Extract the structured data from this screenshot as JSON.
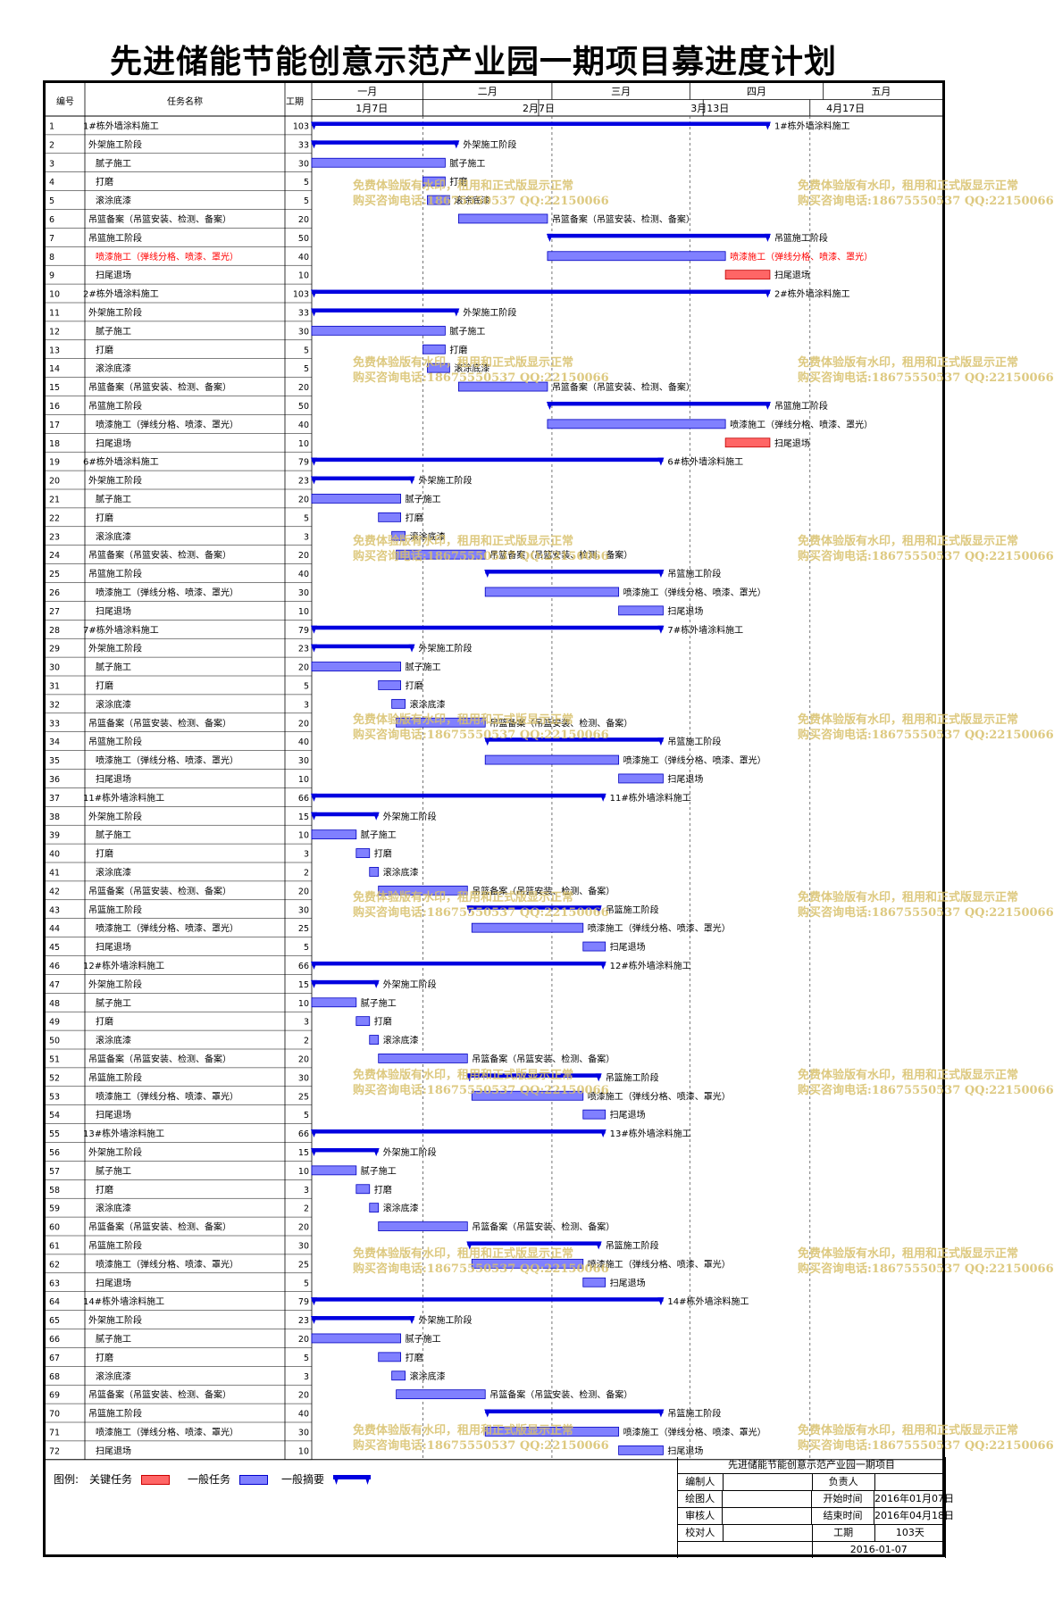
{
  "title": "先进储能节能创意示范产业园一期项目募进度计划",
  "header": {
    "col_no": "编号",
    "col_name": "任务名称",
    "col_dur": "工期"
  },
  "months": [
    "一月",
    "二月",
    "三月",
    "四月",
    "五月"
  ],
  "weeks": [
    "1月7日",
    "2月7日",
    "3月13日",
    "4月17日"
  ],
  "watermark": {
    "line1": "免费体验版有水印，租用和正式版显示正常",
    "line2": "购买咨询电话:18675550537 QQ:22150066"
  },
  "colors": {
    "summary": "#0000e0",
    "task": "#8080ff",
    "critical": "#ff6666",
    "critical_text": "#ff0000"
  },
  "chart_data": {
    "type": "gantt",
    "x_unit": "day index from project start (2016-01-07)",
    "tasks": [
      {
        "id": 1,
        "name": "1#栋外墙涂料施工",
        "dur": 103,
        "start": 0,
        "type": "summary",
        "indent": 0
      },
      {
        "id": 2,
        "name": "外架施工阶段",
        "dur": 33,
        "start": 0,
        "type": "summary",
        "indent": 1
      },
      {
        "id": 3,
        "name": "腻子施工",
        "dur": 30,
        "start": 0,
        "type": "task",
        "indent": 2
      },
      {
        "id": 4,
        "name": "打磨",
        "dur": 5,
        "start": 25,
        "type": "task",
        "indent": 2
      },
      {
        "id": 5,
        "name": "滚涂底漆",
        "dur": 5,
        "start": 26,
        "type": "task",
        "indent": 2
      },
      {
        "id": 6,
        "name": "吊篮备案（吊篮安装、检测、备案）",
        "dur": 20,
        "start": 33,
        "type": "task",
        "indent": 1
      },
      {
        "id": 7,
        "name": "吊篮施工阶段",
        "dur": 50,
        "start": 53,
        "type": "summary",
        "indent": 1
      },
      {
        "id": 8,
        "name": "喷漆施工（弹线分格、喷漆、罩光）",
        "dur": 40,
        "start": 53,
        "type": "task",
        "indent": 2,
        "red": true
      },
      {
        "id": 9,
        "name": "扫尾退场",
        "dur": 10,
        "start": 93,
        "type": "critical",
        "indent": 2
      },
      {
        "id": 10,
        "name": "2#栋外墙涂料施工",
        "dur": 103,
        "start": 0,
        "type": "summary",
        "indent": 0
      },
      {
        "id": 11,
        "name": "外架施工阶段",
        "dur": 33,
        "start": 0,
        "type": "summary",
        "indent": 1
      },
      {
        "id": 12,
        "name": "腻子施工",
        "dur": 30,
        "start": 0,
        "type": "task",
        "indent": 2
      },
      {
        "id": 13,
        "name": "打磨",
        "dur": 5,
        "start": 25,
        "type": "task",
        "indent": 2
      },
      {
        "id": 14,
        "name": "滚涂底漆",
        "dur": 5,
        "start": 26,
        "type": "task",
        "indent": 2
      },
      {
        "id": 15,
        "name": "吊篮备案（吊篮安装、检测、备案）",
        "dur": 20,
        "start": 33,
        "type": "task",
        "indent": 1
      },
      {
        "id": 16,
        "name": "吊篮施工阶段",
        "dur": 50,
        "start": 53,
        "type": "summary",
        "indent": 1
      },
      {
        "id": 17,
        "name": "喷漆施工（弹线分格、喷漆、罩光）",
        "dur": 40,
        "start": 53,
        "type": "task",
        "indent": 2
      },
      {
        "id": 18,
        "name": "扫尾退场",
        "dur": 10,
        "start": 93,
        "type": "critical",
        "indent": 2
      },
      {
        "id": 19,
        "name": "6#栋外墙涂料施工",
        "dur": 79,
        "start": 0,
        "type": "summary",
        "indent": 0
      },
      {
        "id": 20,
        "name": "外架施工阶段",
        "dur": 23,
        "start": 0,
        "type": "summary",
        "indent": 1
      },
      {
        "id": 21,
        "name": "腻子施工",
        "dur": 20,
        "start": 0,
        "type": "task",
        "indent": 2
      },
      {
        "id": 22,
        "name": "打磨",
        "dur": 5,
        "start": 15,
        "type": "task",
        "indent": 2
      },
      {
        "id": 23,
        "name": "滚涂底漆",
        "dur": 3,
        "start": 18,
        "type": "task",
        "indent": 2
      },
      {
        "id": 24,
        "name": "吊篮备案（吊篮安装、检测、备案）",
        "dur": 20,
        "start": 19,
        "type": "task",
        "indent": 1
      },
      {
        "id": 25,
        "name": "吊篮施工阶段",
        "dur": 40,
        "start": 39,
        "type": "summary",
        "indent": 1
      },
      {
        "id": 26,
        "name": "喷漆施工（弹线分格、喷漆、罩光）",
        "dur": 30,
        "start": 39,
        "type": "task",
        "indent": 2
      },
      {
        "id": 27,
        "name": "扫尾退场",
        "dur": 10,
        "start": 69,
        "type": "task",
        "indent": 2
      },
      {
        "id": 28,
        "name": "7#栋外墙涂料施工",
        "dur": 79,
        "start": 0,
        "type": "summary",
        "indent": 0
      },
      {
        "id": 29,
        "name": "外架施工阶段",
        "dur": 23,
        "start": 0,
        "type": "summary",
        "indent": 1
      },
      {
        "id": 30,
        "name": "腻子施工",
        "dur": 20,
        "start": 0,
        "type": "task",
        "indent": 2
      },
      {
        "id": 31,
        "name": "打磨",
        "dur": 5,
        "start": 15,
        "type": "task",
        "indent": 2
      },
      {
        "id": 32,
        "name": "滚涂底漆",
        "dur": 3,
        "start": 18,
        "type": "task",
        "indent": 2
      },
      {
        "id": 33,
        "name": "吊篮备案（吊篮安装、检测、备案）",
        "dur": 20,
        "start": 19,
        "type": "task",
        "indent": 1
      },
      {
        "id": 34,
        "name": "吊篮施工阶段",
        "dur": 40,
        "start": 39,
        "type": "summary",
        "indent": 1
      },
      {
        "id": 35,
        "name": "喷漆施工（弹线分格、喷漆、罩光）",
        "dur": 30,
        "start": 39,
        "type": "task",
        "indent": 2
      },
      {
        "id": 36,
        "name": "扫尾退场",
        "dur": 10,
        "start": 69,
        "type": "task",
        "indent": 2
      },
      {
        "id": 37,
        "name": "11#栋外墙涂料施工",
        "dur": 66,
        "start": 0,
        "type": "summary",
        "indent": 0
      },
      {
        "id": 38,
        "name": "外架施工阶段",
        "dur": 15,
        "start": 0,
        "type": "summary",
        "indent": 1
      },
      {
        "id": 39,
        "name": "腻子施工",
        "dur": 10,
        "start": 0,
        "type": "task",
        "indent": 2
      },
      {
        "id": 40,
        "name": "打磨",
        "dur": 3,
        "start": 10,
        "type": "task",
        "indent": 2
      },
      {
        "id": 41,
        "name": "滚涂底漆",
        "dur": 2,
        "start": 13,
        "type": "task",
        "indent": 2
      },
      {
        "id": 42,
        "name": "吊篮备案（吊篮安装、检测、备案）",
        "dur": 20,
        "start": 15,
        "type": "task",
        "indent": 1
      },
      {
        "id": 43,
        "name": "吊篮施工阶段",
        "dur": 30,
        "start": 35,
        "type": "summary",
        "indent": 1
      },
      {
        "id": 44,
        "name": "喷漆施工（弹线分格、喷漆、罩光）",
        "dur": 25,
        "start": 36,
        "type": "task",
        "indent": 2
      },
      {
        "id": 45,
        "name": "扫尾退场",
        "dur": 5,
        "start": 61,
        "type": "task",
        "indent": 2
      },
      {
        "id": 46,
        "name": "12#栋外墙涂料施工",
        "dur": 66,
        "start": 0,
        "type": "summary",
        "indent": 0
      },
      {
        "id": 47,
        "name": "外架施工阶段",
        "dur": 15,
        "start": 0,
        "type": "summary",
        "indent": 1
      },
      {
        "id": 48,
        "name": "腻子施工",
        "dur": 10,
        "start": 0,
        "type": "task",
        "indent": 2
      },
      {
        "id": 49,
        "name": "打磨",
        "dur": 3,
        "start": 10,
        "type": "task",
        "indent": 2
      },
      {
        "id": 50,
        "name": "滚涂底漆",
        "dur": 2,
        "start": 13,
        "type": "task",
        "indent": 2
      },
      {
        "id": 51,
        "name": "吊篮备案（吊篮安装、检测、备案）",
        "dur": 20,
        "start": 15,
        "type": "task",
        "indent": 1
      },
      {
        "id": 52,
        "name": "吊篮施工阶段",
        "dur": 30,
        "start": 35,
        "type": "summary",
        "indent": 1
      },
      {
        "id": 53,
        "name": "喷漆施工（弹线分格、喷漆、罩光）",
        "dur": 25,
        "start": 36,
        "type": "task",
        "indent": 2
      },
      {
        "id": 54,
        "name": "扫尾退场",
        "dur": 5,
        "start": 61,
        "type": "task",
        "indent": 2
      },
      {
        "id": 55,
        "name": "13#栋外墙涂料施工",
        "dur": 66,
        "start": 0,
        "type": "summary",
        "indent": 0
      },
      {
        "id": 56,
        "name": "外架施工阶段",
        "dur": 15,
        "start": 0,
        "type": "summary",
        "indent": 1
      },
      {
        "id": 57,
        "name": "腻子施工",
        "dur": 10,
        "start": 0,
        "type": "task",
        "indent": 2
      },
      {
        "id": 58,
        "name": "打磨",
        "dur": 3,
        "start": 10,
        "type": "task",
        "indent": 2
      },
      {
        "id": 59,
        "name": "滚涂底漆",
        "dur": 2,
        "start": 13,
        "type": "task",
        "indent": 2
      },
      {
        "id": 60,
        "name": "吊篮备案（吊篮安装、检测、备案）",
        "dur": 20,
        "start": 15,
        "type": "task",
        "indent": 1
      },
      {
        "id": 61,
        "name": "吊篮施工阶段",
        "dur": 30,
        "start": 35,
        "type": "summary",
        "indent": 1
      },
      {
        "id": 62,
        "name": "喷漆施工（弹线分格、喷漆、罩光）",
        "dur": 25,
        "start": 36,
        "type": "task",
        "indent": 2
      },
      {
        "id": 63,
        "name": "扫尾退场",
        "dur": 5,
        "start": 61,
        "type": "task",
        "indent": 2
      },
      {
        "id": 64,
        "name": "14#栋外墙涂料施工",
        "dur": 79,
        "start": 0,
        "type": "summary",
        "indent": 0
      },
      {
        "id": 65,
        "name": "外架施工阶段",
        "dur": 23,
        "start": 0,
        "type": "summary",
        "indent": 1
      },
      {
        "id": 66,
        "name": "腻子施工",
        "dur": 20,
        "start": 0,
        "type": "task",
        "indent": 2
      },
      {
        "id": 67,
        "name": "打磨",
        "dur": 5,
        "start": 15,
        "type": "task",
        "indent": 2
      },
      {
        "id": 68,
        "name": "滚涂底漆",
        "dur": 3,
        "start": 18,
        "type": "task",
        "indent": 2
      },
      {
        "id": 69,
        "name": "吊篮备案（吊篮安装、检测、备案）",
        "dur": 20,
        "start": 19,
        "type": "task",
        "indent": 1
      },
      {
        "id": 70,
        "name": "吊篮施工阶段",
        "dur": 40,
        "start": 39,
        "type": "summary",
        "indent": 1
      },
      {
        "id": 71,
        "name": "喷漆施工（弹线分格、喷漆、罩光）",
        "dur": 30,
        "start": 39,
        "type": "task",
        "indent": 2
      },
      {
        "id": 72,
        "name": "扫尾退场",
        "dur": 10,
        "start": 69,
        "type": "task",
        "indent": 2
      }
    ]
  },
  "legend": {
    "prefix": "图例:",
    "critical": "关键任务",
    "task": "一般任务",
    "summary": "一般摘要"
  },
  "info": {
    "project": "先进储能节能创意示范产业园一期项目",
    "rows": [
      [
        "编制人",
        "",
        "负责人",
        ""
      ],
      [
        "绘图人",
        "",
        "开始时间",
        "2016年01月07日"
      ],
      [
        "审核人",
        "",
        "结束时间",
        "2016年04月18日"
      ],
      [
        "校对人",
        "",
        "工期",
        "103天"
      ]
    ],
    "date": "2016-01-07"
  }
}
